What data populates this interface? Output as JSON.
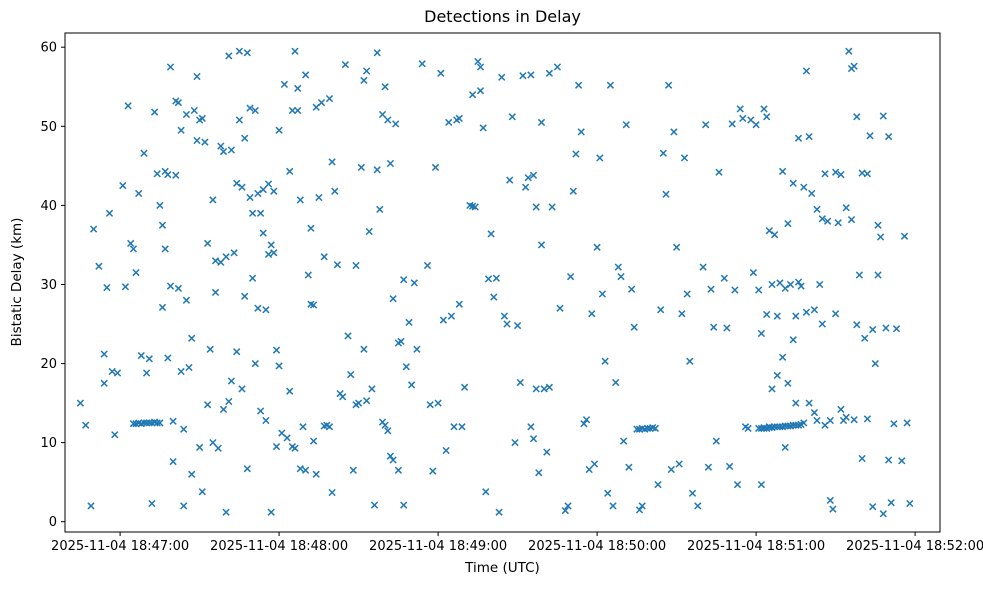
{
  "chart_data": {
    "type": "scatter",
    "title": "Detections in Delay",
    "xlabel": "Time (UTC)",
    "ylabel": "Bistatic Delay (km)",
    "marker": "x",
    "marker_color": "#1f77b4",
    "grid": false,
    "legend": "none",
    "x_axis": {
      "unit": "seconds after 2025-11-04 18:47:00 UTC",
      "lim": [
        -20.8,
        309.4
      ],
      "ticks": [
        {
          "t": 0,
          "label": "2025-11-04 18:47:00"
        },
        {
          "t": 60,
          "label": "2025-11-04 18:48:00"
        },
        {
          "t": 120,
          "label": "2025-11-04 18:49:00"
        },
        {
          "t": 180,
          "label": "2025-11-04 18:50:00"
        },
        {
          "t": 240,
          "label": "2025-11-04 18:51:00"
        },
        {
          "t": 300,
          "label": "2025-11-04 18:52:00"
        }
      ]
    },
    "y_axis": {
      "lim": [
        -1.3,
        61.8
      ],
      "ticks": [
        {
          "v": 0,
          "label": "0"
        },
        {
          "v": 10,
          "label": "10"
        },
        {
          "v": 20,
          "label": "20"
        },
        {
          "v": 30,
          "label": "30"
        },
        {
          "v": 40,
          "label": "40"
        },
        {
          "v": 50,
          "label": "50"
        },
        {
          "v": 60,
          "label": "60"
        }
      ]
    },
    "points": [
      [
        -15,
        15.0
      ],
      [
        -13,
        12.2
      ],
      [
        -11,
        2.0
      ],
      [
        -10,
        37.0
      ],
      [
        -8,
        32.3
      ],
      [
        -6,
        21.2
      ],
      [
        -6,
        17.5
      ],
      [
        -5,
        29.6
      ],
      [
        -4,
        39.0
      ],
      [
        -3,
        19.0
      ],
      [
        -2,
        11.0
      ],
      [
        -1,
        18.8
      ],
      [
        1,
        42.5
      ],
      [
        2,
        29.7
      ],
      [
        3,
        52.6
      ],
      [
        4,
        35.2
      ],
      [
        5,
        34.5
      ],
      [
        5,
        12.4
      ],
      [
        6,
        31.5
      ],
      [
        6,
        12.4
      ],
      [
        7,
        41.5
      ],
      [
        7,
        12.5
      ],
      [
        8,
        21.0
      ],
      [
        8,
        12.4
      ],
      [
        9,
        46.6
      ],
      [
        9,
        12.5
      ],
      [
        10,
        18.8
      ],
      [
        10,
        12.5
      ],
      [
        11,
        20.6
      ],
      [
        11,
        12.5
      ],
      [
        12,
        2.3
      ],
      [
        12,
        12.5
      ],
      [
        13,
        51.8
      ],
      [
        13,
        12.6
      ],
      [
        14,
        44.0
      ],
      [
        14,
        12.5
      ],
      [
        15,
        40.0
      ],
      [
        15,
        12.5
      ],
      [
        16,
        37.5
      ],
      [
        16,
        27.1
      ],
      [
        17,
        44.3
      ],
      [
        17,
        34.5
      ],
      [
        18,
        20.7
      ],
      [
        18,
        43.9
      ],
      [
        19,
        57.5
      ],
      [
        19,
        29.8
      ],
      [
        20,
        12.7
      ],
      [
        20,
        7.6
      ],
      [
        21,
        53.2
      ],
      [
        21,
        43.8
      ],
      [
        22,
        53.0
      ],
      [
        22,
        29.5
      ],
      [
        23,
        49.5
      ],
      [
        23,
        19.0
      ],
      [
        24,
        11.7
      ],
      [
        24,
        2.0
      ],
      [
        25,
        51.5
      ],
      [
        25,
        28.0
      ],
      [
        26,
        19.5
      ],
      [
        27,
        23.2
      ],
      [
        27,
        6.0
      ],
      [
        28,
        52.0
      ],
      [
        29,
        56.3
      ],
      [
        29,
        48.2
      ],
      [
        30,
        50.8
      ],
      [
        30,
        9.4
      ],
      [
        31,
        51.0
      ],
      [
        31,
        3.8
      ],
      [
        32,
        48.0
      ],
      [
        33,
        35.2
      ],
      [
        33,
        14.8
      ],
      [
        34,
        21.8
      ],
      [
        35,
        40.7
      ],
      [
        35,
        10.0
      ],
      [
        36,
        33.0
      ],
      [
        36,
        29.0
      ],
      [
        37,
        9.3
      ],
      [
        38,
        47.5
      ],
      [
        38,
        32.8
      ],
      [
        39,
        46.8
      ],
      [
        39,
        14.2
      ],
      [
        40,
        33.5
      ],
      [
        40,
        1.2
      ],
      [
        41,
        58.9
      ],
      [
        41,
        15.2
      ],
      [
        42,
        47.0
      ],
      [
        42,
        17.8
      ],
      [
        43,
        34.0
      ],
      [
        44,
        42.8
      ],
      [
        44,
        21.5
      ],
      [
        45,
        59.5
      ],
      [
        45,
        50.8
      ],
      [
        46,
        42.3
      ],
      [
        46,
        16.8
      ],
      [
        47,
        48.5
      ],
      [
        47,
        28.5
      ],
      [
        48,
        59.3
      ],
      [
        48,
        6.7
      ],
      [
        49,
        52.3
      ],
      [
        49,
        41.0
      ],
      [
        50,
        39.0
      ],
      [
        50,
        30.8
      ],
      [
        51,
        52.0
      ],
      [
        51,
        20.0
      ],
      [
        52,
        41.5
      ],
      [
        52,
        27.0
      ],
      [
        53,
        39.0
      ],
      [
        53,
        14.0
      ],
      [
        54,
        42.0
      ],
      [
        54,
        36.5
      ],
      [
        55,
        26.8
      ],
      [
        55,
        12.8
      ],
      [
        56,
        42.7
      ],
      [
        56,
        33.8
      ],
      [
        57,
        35.0
      ],
      [
        57,
        1.2
      ],
      [
        58,
        41.8
      ],
      [
        58,
        34.0
      ],
      [
        59,
        9.5
      ],
      [
        59,
        21.7
      ],
      [
        60,
        49.5
      ],
      [
        60,
        19.7
      ],
      [
        61,
        11.2
      ],
      [
        62,
        55.3
      ],
      [
        63,
        10.6
      ],
      [
        64,
        44.3
      ],
      [
        64,
        16.5
      ],
      [
        65,
        52.0
      ],
      [
        65,
        9.5
      ],
      [
        66,
        59.5
      ],
      [
        66,
        9.3
      ],
      [
        67,
        54.8
      ],
      [
        67,
        52.0
      ],
      [
        68,
        40.7
      ],
      [
        68,
        6.7
      ],
      [
        69,
        12.0
      ],
      [
        70,
        56.5
      ],
      [
        70,
        6.5
      ],
      [
        71,
        31.2
      ],
      [
        72,
        37.1
      ],
      [
        72,
        27.5
      ],
      [
        73,
        27.4
      ],
      [
        73,
        10.2
      ],
      [
        74,
        52.4
      ],
      [
        74,
        6.0
      ],
      [
        75,
        41.0
      ],
      [
        76,
        53.0
      ],
      [
        77,
        33.5
      ],
      [
        77,
        12.1
      ],
      [
        78,
        12.2
      ],
      [
        79,
        53.5
      ],
      [
        79,
        12.0
      ],
      [
        80,
        45.5
      ],
      [
        80,
        3.7
      ],
      [
        81,
        41.8
      ],
      [
        82,
        32.5
      ],
      [
        83,
        16.2
      ],
      [
        84,
        15.8
      ],
      [
        85,
        57.8
      ],
      [
        86,
        23.5
      ],
      [
        87,
        18.6
      ],
      [
        88,
        6.5
      ],
      [
        89,
        32.4
      ],
      [
        89,
        14.8
      ],
      [
        90,
        15.0
      ],
      [
        91,
        44.8
      ],
      [
        92,
        55.8
      ],
      [
        92,
        21.8
      ],
      [
        93,
        57.0
      ],
      [
        93,
        15.3
      ],
      [
        94,
        36.7
      ],
      [
        95,
        16.8
      ],
      [
        96,
        2.1
      ],
      [
        97,
        59.3
      ],
      [
        97,
        44.5
      ],
      [
        98,
        39.5
      ],
      [
        99,
        51.5
      ],
      [
        99,
        12.6
      ],
      [
        100,
        55.0
      ],
      [
        100,
        12.2
      ],
      [
        101,
        50.8
      ],
      [
        101,
        11.5
      ],
      [
        102,
        45.3
      ],
      [
        102,
        8.3
      ],
      [
        103,
        28.2
      ],
      [
        103,
        7.8
      ],
      [
        104,
        50.3
      ],
      [
        105,
        22.6
      ],
      [
        105,
        6.5
      ],
      [
        106,
        22.8
      ],
      [
        107,
        30.6
      ],
      [
        107,
        2.1
      ],
      [
        108,
        19.6
      ],
      [
        109,
        25.2
      ],
      [
        110,
        17.3
      ],
      [
        111,
        30.2
      ],
      [
        112,
        21.8
      ],
      [
        114,
        57.9
      ],
      [
        116,
        32.4
      ],
      [
        117,
        14.8
      ],
      [
        118,
        6.4
      ],
      [
        119,
        44.8
      ],
      [
        120,
        15.0
      ],
      [
        121,
        56.7
      ],
      [
        122,
        25.5
      ],
      [
        123,
        9.0
      ],
      [
        124,
        50.5
      ],
      [
        125,
        26.0
      ],
      [
        126,
        12.0
      ],
      [
        127,
        50.8
      ],
      [
        128,
        51.0
      ],
      [
        128,
        27.5
      ],
      [
        129,
        12.0
      ],
      [
        130,
        17.0
      ],
      [
        132,
        40.0
      ],
      [
        133,
        54.0
      ],
      [
        133,
        39.9
      ],
      [
        134,
        39.8
      ],
      [
        135,
        58.2
      ],
      [
        136,
        57.5
      ],
      [
        136,
        54.5
      ],
      [
        137,
        49.8
      ],
      [
        138,
        3.8
      ],
      [
        139,
        30.7
      ],
      [
        140,
        36.4
      ],
      [
        141,
        28.4
      ],
      [
        142,
        30.8
      ],
      [
        143,
        1.2
      ],
      [
        144,
        56.2
      ],
      [
        145,
        26.0
      ],
      [
        146,
        25.0
      ],
      [
        147,
        43.2
      ],
      [
        148,
        51.2
      ],
      [
        149,
        10.0
      ],
      [
        150,
        24.8
      ],
      [
        151,
        17.6
      ],
      [
        152,
        56.4
      ],
      [
        153,
        42.3
      ],
      [
        154,
        43.5
      ],
      [
        155,
        56.5
      ],
      [
        155,
        12.0
      ],
      [
        156,
        43.8
      ],
      [
        156,
        10.5
      ],
      [
        157,
        39.8
      ],
      [
        157,
        16.8
      ],
      [
        158,
        6.2
      ],
      [
        159,
        50.5
      ],
      [
        159,
        35.0
      ],
      [
        160,
        16.8
      ],
      [
        161,
        8.8
      ],
      [
        162,
        56.7
      ],
      [
        162,
        17.0
      ],
      [
        163,
        39.8
      ],
      [
        165,
        57.5
      ],
      [
        166,
        27.0
      ],
      [
        168,
        1.4
      ],
      [
        169,
        2.0
      ],
      [
        170,
        31.0
      ],
      [
        171,
        41.8
      ],
      [
        172,
        46.5
      ],
      [
        173,
        55.2
      ],
      [
        174,
        49.3
      ],
      [
        175,
        12.4
      ],
      [
        176,
        12.9
      ],
      [
        177,
        6.6
      ],
      [
        178,
        26.3
      ],
      [
        179,
        7.3
      ],
      [
        180,
        34.7
      ],
      [
        181,
        46.0
      ],
      [
        182,
        28.8
      ],
      [
        183,
        20.3
      ],
      [
        184,
        3.6
      ],
      [
        185,
        55.2
      ],
      [
        186,
        2.0
      ],
      [
        187,
        17.6
      ],
      [
        188,
        32.2
      ],
      [
        189,
        31.0
      ],
      [
        190,
        10.2
      ],
      [
        191,
        50.2
      ],
      [
        192,
        6.9
      ],
      [
        193,
        29.4
      ],
      [
        194,
        24.6
      ],
      [
        195,
        11.7
      ],
      [
        196,
        11.7
      ],
      [
        196,
        1.5
      ],
      [
        197,
        11.8
      ],
      [
        197,
        2.0
      ],
      [
        198,
        11.7
      ],
      [
        199,
        11.8
      ],
      [
        200,
        11.8
      ],
      [
        201,
        11.9
      ],
      [
        202,
        11.8
      ],
      [
        203,
        4.7
      ],
      [
        204,
        26.8
      ],
      [
        205,
        46.6
      ],
      [
        206,
        41.4
      ],
      [
        207,
        55.2
      ],
      [
        208,
        6.6
      ],
      [
        209,
        49.3
      ],
      [
        210,
        34.7
      ],
      [
        211,
        7.3
      ],
      [
        212,
        26.3
      ],
      [
        213,
        46.0
      ],
      [
        214,
        28.8
      ],
      [
        215,
        20.3
      ],
      [
        216,
        3.6
      ],
      [
        218,
        2.0
      ],
      [
        220,
        32.2
      ],
      [
        221,
        50.2
      ],
      [
        222,
        6.9
      ],
      [
        223,
        29.4
      ],
      [
        224,
        24.6
      ],
      [
        225,
        10.2
      ],
      [
        226,
        44.2
      ],
      [
        228,
        30.8
      ],
      [
        229,
        24.5
      ],
      [
        230,
        7.0
      ],
      [
        231,
        50.3
      ],
      [
        232,
        29.3
      ],
      [
        233,
        4.7
      ],
      [
        234,
        52.2
      ],
      [
        235,
        51.0
      ],
      [
        236,
        12.0
      ],
      [
        237,
        11.8
      ],
      [
        238,
        50.8
      ],
      [
        239,
        31.5
      ],
      [
        241,
        11.8
      ],
      [
        242,
        11.8
      ],
      [
        243,
        11.8
      ],
      [
        243,
        11.9
      ],
      [
        244,
        11.8
      ],
      [
        245,
        11.9
      ],
      [
        245,
        12.0
      ],
      [
        246,
        11.9
      ],
      [
        247,
        12.0
      ],
      [
        248,
        12.0
      ],
      [
        249,
        12.0
      ],
      [
        250,
        12.0
      ],
      [
        251,
        12.1
      ],
      [
        252,
        12.1
      ],
      [
        253,
        12.1
      ],
      [
        254,
        12.2
      ],
      [
        255,
        12.2
      ],
      [
        256,
        12.2
      ],
      [
        257,
        12.3
      ],
      [
        240,
        50.2
      ],
      [
        241,
        29.3
      ],
      [
        242,
        23.8
      ],
      [
        242,
        4.7
      ],
      [
        243,
        52.2
      ],
      [
        244,
        51.2
      ],
      [
        244,
        26.2
      ],
      [
        245,
        36.8
      ],
      [
        246,
        30.0
      ],
      [
        246,
        16.8
      ],
      [
        247,
        36.3
      ],
      [
        248,
        26.0
      ],
      [
        248,
        18.5
      ],
      [
        249,
        30.2
      ],
      [
        250,
        20.8
      ],
      [
        250,
        44.3
      ],
      [
        251,
        29.5
      ],
      [
        251,
        9.4
      ],
      [
        252,
        37.7
      ],
      [
        252,
        17.5
      ],
      [
        253,
        30.0
      ],
      [
        254,
        42.8
      ],
      [
        254,
        23.0
      ],
      [
        255,
        15.0
      ],
      [
        255,
        26.0
      ],
      [
        256,
        48.5
      ],
      [
        256,
        30.3
      ],
      [
        257,
        29.8
      ],
      [
        258,
        42.3
      ],
      [
        258,
        12.5
      ],
      [
        259,
        57.0
      ],
      [
        259,
        26.5
      ],
      [
        260,
        15.0
      ],
      [
        260,
        48.7
      ],
      [
        261,
        41.5
      ],
      [
        262,
        26.8
      ],
      [
        262,
        13.8
      ],
      [
        263,
        39.5
      ],
      [
        263,
        12.8
      ],
      [
        264,
        30.0
      ],
      [
        265,
        38.3
      ],
      [
        265,
        25.0
      ],
      [
        266,
        44.0
      ],
      [
        266,
        12.2
      ],
      [
        267,
        38.0
      ],
      [
        268,
        12.8
      ],
      [
        268,
        2.7
      ],
      [
        269,
        1.6
      ],
      [
        270,
        44.2
      ],
      [
        270,
        26.3
      ],
      [
        271,
        37.8
      ],
      [
        272,
        14.2
      ],
      [
        272,
        43.9
      ],
      [
        273,
        12.8
      ],
      [
        274,
        13.2
      ],
      [
        274,
        39.7
      ],
      [
        275,
        59.5
      ],
      [
        276,
        57.3
      ],
      [
        276,
        38.2
      ],
      [
        277,
        57.6
      ],
      [
        277,
        12.9
      ],
      [
        278,
        51.2
      ],
      [
        278,
        24.9
      ],
      [
        279,
        31.2
      ],
      [
        280,
        8.0
      ],
      [
        280,
        44.1
      ],
      [
        281,
        23.2
      ],
      [
        282,
        13.0
      ],
      [
        282,
        44.0
      ],
      [
        283,
        48.8
      ],
      [
        284,
        24.3
      ],
      [
        284,
        1.9
      ],
      [
        285,
        20.0
      ],
      [
        286,
        37.5
      ],
      [
        286,
        31.2
      ],
      [
        287,
        36.0
      ],
      [
        288,
        1.0
      ],
      [
        288,
        51.3
      ],
      [
        289,
        24.5
      ],
      [
        290,
        7.8
      ],
      [
        290,
        48.7
      ],
      [
        291,
        2.4
      ],
      [
        292,
        12.4
      ],
      [
        293,
        24.4
      ],
      [
        295,
        7.7
      ],
      [
        296,
        36.1
      ],
      [
        297,
        12.5
      ],
      [
        298,
        2.3
      ]
    ]
  }
}
